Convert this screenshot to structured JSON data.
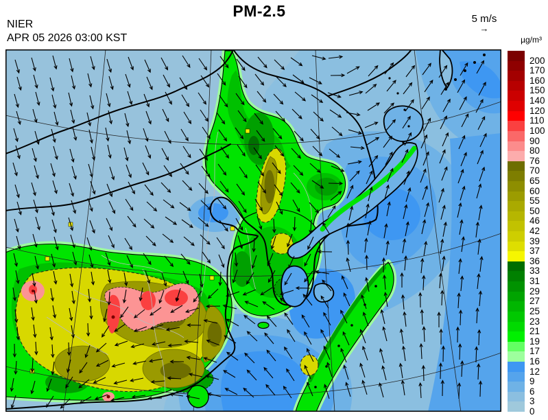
{
  "header": {
    "title": "PM-2.5",
    "agency": "NIER",
    "datetime": "APR 05 2026 03:00 KST"
  },
  "wind_legend": {
    "speed_label": "5 m/s",
    "arrow_glyph": "→"
  },
  "colorbar": {
    "unit_label": "µg/m³",
    "tick_labels": [
      "200",
      "170",
      "160",
      "150",
      "140",
      "120",
      "110",
      "100",
      "90",
      "80",
      "76",
      "70",
      "65",
      "60",
      "55",
      "50",
      "46",
      "42",
      "39",
      "37",
      "36",
      "33",
      "31",
      "29",
      "27",
      "25",
      "23",
      "21",
      "19",
      "17",
      "16",
      "12",
      "9",
      "6",
      "3",
      "0"
    ],
    "segment_colors_top_to_bottom": [
      "#7B0000",
      "#8F0000",
      "#A30000",
      "#B70000",
      "#CB0000",
      "#DF0000",
      "#FF0000",
      "#FA4040",
      "#FA6868",
      "#FC8C8C",
      "#FCACAC",
      "#6E6E00",
      "#7E7E00",
      "#8E8E00",
      "#9C9C00",
      "#AAAA00",
      "#B6B600",
      "#C2C200",
      "#CECE00",
      "#DEDE00",
      "#F6F600",
      "#006E00",
      "#008000",
      "#009200",
      "#00A400",
      "#00B600",
      "#00C800",
      "#00DA00",
      "#00F000",
      "#63FF63",
      "#9DFF9D",
      "#3E97F2",
      "#55A4EC",
      "#6FB2E6",
      "#8BBFE0",
      "#9FC9DC"
    ]
  },
  "map_palette": {
    "blue_0_3": "#97C2DC",
    "blue_3_6": "#8BBFE0",
    "blue_6_9": "#6FB2E6",
    "blue_9_12": "#55A4EC",
    "blue_12_16": "#3E97F2",
    "green_pale": "#9DFF9D",
    "green_bright": "#00E400",
    "green_medium": "#00C000",
    "green_dark": "#00A000",
    "green_darkest": "#007000",
    "yellow": "#D8D800",
    "yellow_bright": "#F0F000",
    "olive": "#9A9A00",
    "olive_dark": "#6E6E00",
    "pink": "#FC9494",
    "red": "#FA4040",
    "maroon": "#7B0000",
    "coastline": "#000000",
    "province_border": "#BBBBBB",
    "grid_line": "#222222",
    "wind_arrow": "#000000",
    "frame": "#000000"
  }
}
